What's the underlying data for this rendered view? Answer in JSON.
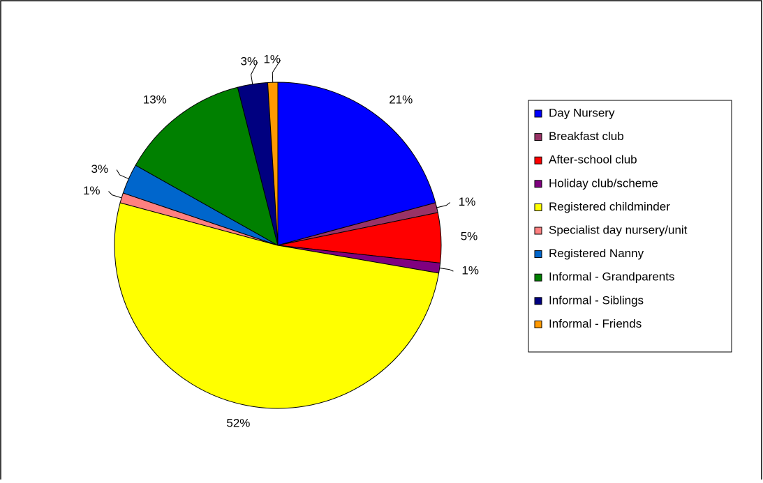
{
  "chart_data": {
    "type": "pie",
    "categories": [
      "Day Nursery",
      "Breakfast club",
      "After-school club",
      "Holiday club/scheme",
      "Registered childminder",
      "Specialist day nursery/unit",
      "Registered Nanny",
      "Informal - Grandparents",
      "Informal - Siblings",
      "Informal - Friends"
    ],
    "values": [
      21,
      1,
      5,
      1,
      52,
      1,
      3,
      13,
      3,
      1
    ],
    "value_labels": [
      "21%",
      "1%",
      "5%",
      "1%",
      "52%",
      "1%",
      "3%",
      "13%",
      "3%",
      "1%"
    ],
    "colors": [
      "#0000ff",
      "#993366",
      "#ff0000",
      "#800080",
      "#ffff00",
      "#ff8080",
      "#0066cc",
      "#008000",
      "#000080",
      "#ff9900"
    ],
    "legend": "right"
  }
}
